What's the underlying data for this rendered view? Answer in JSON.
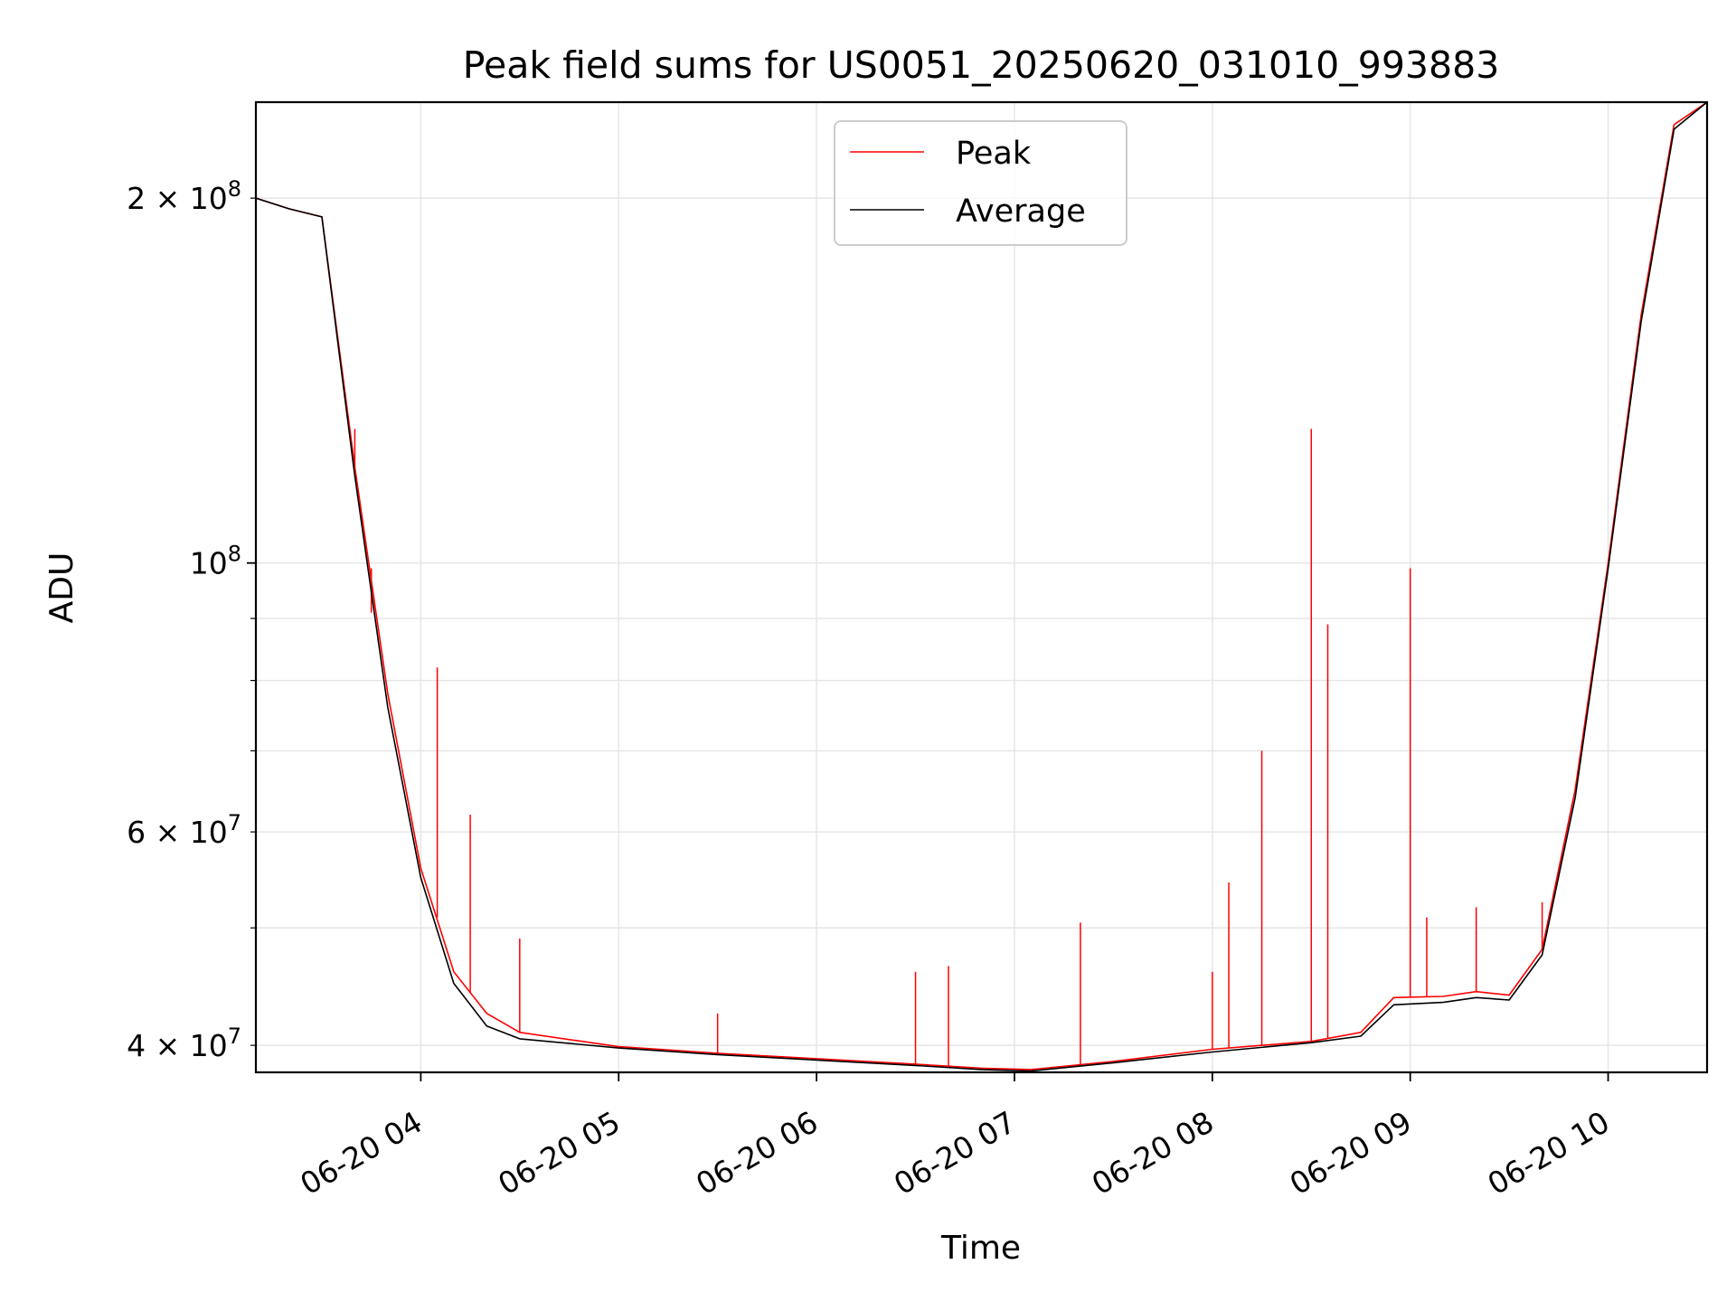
{
  "chart_data": {
    "type": "line",
    "title": "Peak field sums for US0051_20250620_031010_993883",
    "xlabel": "Time",
    "ylabel": "ADU",
    "y_scale": "log",
    "grid": true,
    "legend_position": "top-center",
    "xlim": [
      "2025-06-20 03:10",
      "2025-06-20 10:30"
    ],
    "ylim": [
      38000000,
      240000000
    ],
    "x_ticks": [
      {
        "value": "2025-06-20 04:00",
        "label": "06-20 04"
      },
      {
        "value": "2025-06-20 05:00",
        "label": "06-20 05"
      },
      {
        "value": "2025-06-20 06:00",
        "label": "06-20 06"
      },
      {
        "value": "2025-06-20 07:00",
        "label": "06-20 07"
      },
      {
        "value": "2025-06-20 08:00",
        "label": "06-20 08"
      },
      {
        "value": "2025-06-20 09:00",
        "label": "06-20 09"
      },
      {
        "value": "2025-06-20 10:00",
        "label": "06-20 10"
      }
    ],
    "y_ticks_major": [
      {
        "value": 100000000,
        "base": "10",
        "exp": "8",
        "mant": ""
      }
    ],
    "y_ticks_minor": [
      {
        "value": 40000000,
        "mant": "4",
        "base": "10",
        "exp": "7"
      },
      {
        "value": 60000000,
        "mant": "6",
        "base": "10",
        "exp": "7"
      },
      {
        "value": 200000000,
        "mant": "2",
        "base": "10",
        "exp": "8"
      }
    ],
    "y_grid_extra": [
      50000000,
      70000000,
      80000000,
      90000000
    ],
    "series": [
      {
        "name": "Peak",
        "color": "#ff0000",
        "points": [
          [
            "2025-06-20 03:10",
            200000000
          ],
          [
            "2025-06-20 03:20",
            196000000
          ],
          [
            "2025-06-20 03:30",
            193000000
          ],
          [
            "2025-06-20 03:40",
            120000000
          ],
          [
            "2025-06-20 03:50",
            78000000
          ],
          [
            "2025-06-20 04:00",
            56000000
          ],
          [
            "2025-06-20 04:10",
            46000000
          ],
          [
            "2025-06-20 04:20",
            42500000
          ],
          [
            "2025-06-20 04:30",
            41000000
          ],
          [
            "2025-06-20 05:00",
            39900000
          ],
          [
            "2025-06-20 05:30",
            39400000
          ],
          [
            "2025-06-20 06:00",
            39000000
          ],
          [
            "2025-06-20 06:30",
            38600000
          ],
          [
            "2025-06-20 06:50",
            38300000
          ],
          [
            "2025-06-20 07:05",
            38200000
          ],
          [
            "2025-06-20 07:30",
            38800000
          ],
          [
            "2025-06-20 08:00",
            39700000
          ],
          [
            "2025-06-20 08:30",
            40300000
          ],
          [
            "2025-06-20 08:45",
            41000000
          ],
          [
            "2025-06-20 08:55",
            43800000
          ],
          [
            "2025-06-20 09:10",
            43900000
          ],
          [
            "2025-06-20 09:20",
            44300000
          ],
          [
            "2025-06-20 09:30",
            44000000
          ],
          [
            "2025-06-20 09:40",
            48000000
          ],
          [
            "2025-06-20 09:50",
            65000000
          ],
          [
            "2025-06-20 10:00",
            100000000
          ],
          [
            "2025-06-20 10:10",
            160000000
          ],
          [
            "2025-06-20 10:20",
            230000000
          ],
          [
            "2025-06-20 10:30",
            240000000
          ]
        ],
        "spikes": [
          [
            "2025-06-20 03:40",
            129000000
          ],
          [
            "2025-06-20 03:45",
            91000000
          ],
          [
            "2025-06-20 04:05",
            82000000
          ],
          [
            "2025-06-20 04:15",
            62000000
          ],
          [
            "2025-06-20 04:30",
            49000000
          ],
          [
            "2025-06-20 05:30",
            42500000
          ],
          [
            "2025-06-20 06:30",
            46000000
          ],
          [
            "2025-06-20 06:40",
            46500000
          ],
          [
            "2025-06-20 07:20",
            50500000
          ],
          [
            "2025-06-20 08:00",
            46000000
          ],
          [
            "2025-06-20 08:05",
            54500000
          ],
          [
            "2025-06-20 08:15",
            70000000
          ],
          [
            "2025-06-20 08:30",
            129000000
          ],
          [
            "2025-06-20 08:35",
            89000000
          ],
          [
            "2025-06-20 09:00",
            99000000
          ],
          [
            "2025-06-20 09:05",
            51000000
          ],
          [
            "2025-06-20 09:20",
            52000000
          ],
          [
            "2025-06-20 09:40",
            52500000
          ]
        ]
      },
      {
        "name": "Average",
        "color": "#000000",
        "points": [
          [
            "2025-06-20 03:10",
            200000000
          ],
          [
            "2025-06-20 03:20",
            196000000
          ],
          [
            "2025-06-20 03:30",
            193000000
          ],
          [
            "2025-06-20 03:40",
            118000000
          ],
          [
            "2025-06-20 03:50",
            76000000
          ],
          [
            "2025-06-20 04:00",
            55000000
          ],
          [
            "2025-06-20 04:10",
            45000000
          ],
          [
            "2025-06-20 04:20",
            41500000
          ],
          [
            "2025-06-20 04:30",
            40500000
          ],
          [
            "2025-06-20 05:00",
            39800000
          ],
          [
            "2025-06-20 05:30",
            39300000
          ],
          [
            "2025-06-20 06:00",
            38900000
          ],
          [
            "2025-06-20 06:30",
            38500000
          ],
          [
            "2025-06-20 06:50",
            38200000
          ],
          [
            "2025-06-20 07:05",
            38100000
          ],
          [
            "2025-06-20 07:30",
            38700000
          ],
          [
            "2025-06-20 08:00",
            39500000
          ],
          [
            "2025-06-20 08:30",
            40200000
          ],
          [
            "2025-06-20 08:45",
            40700000
          ],
          [
            "2025-06-20 08:55",
            43200000
          ],
          [
            "2025-06-20 09:10",
            43400000
          ],
          [
            "2025-06-20 09:20",
            43800000
          ],
          [
            "2025-06-20 09:30",
            43600000
          ],
          [
            "2025-06-20 09:40",
            47500000
          ],
          [
            "2025-06-20 09:50",
            64000000
          ],
          [
            "2025-06-20 10:00",
            99000000
          ],
          [
            "2025-06-20 10:10",
            158000000
          ],
          [
            "2025-06-20 10:20",
            228000000
          ],
          [
            "2025-06-20 10:30",
            240000000
          ]
        ]
      }
    ]
  }
}
